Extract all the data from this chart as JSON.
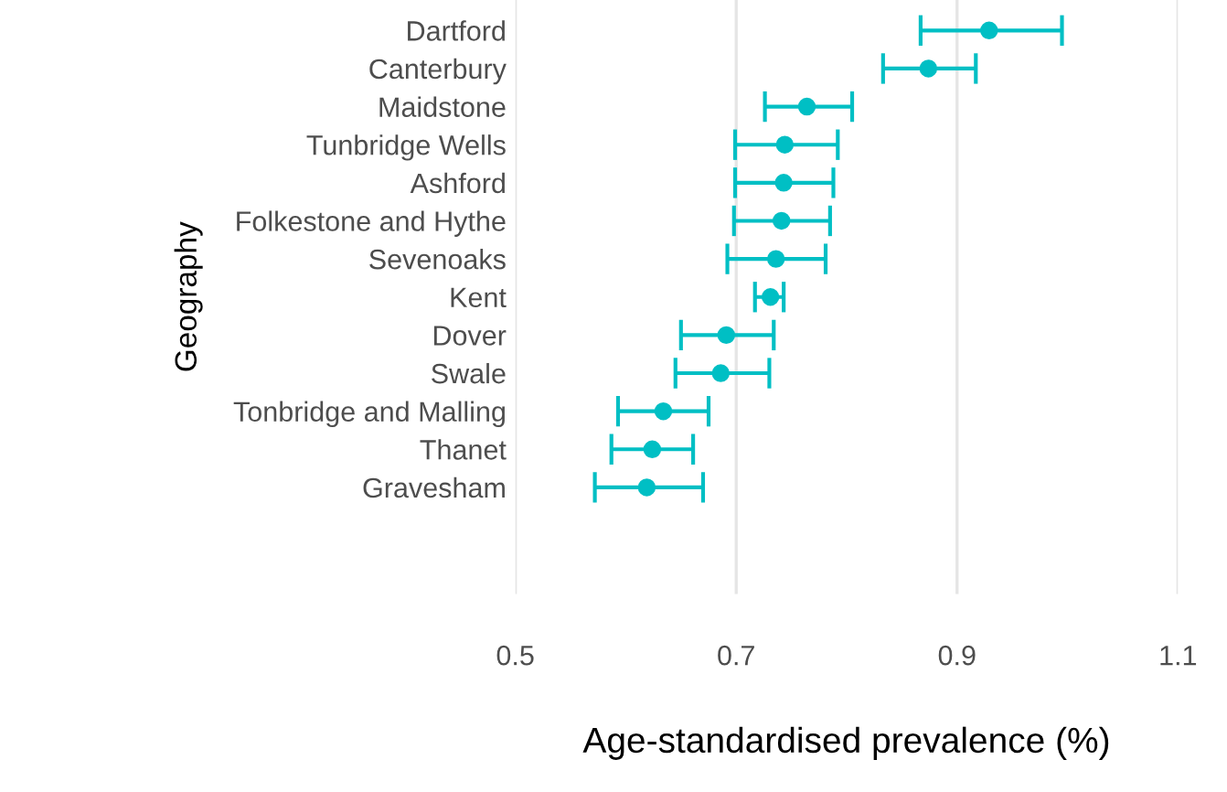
{
  "chart_data": {
    "type": "scatter",
    "orientation": "horizontal",
    "xlabel": "Age-standardised prevalence (%)",
    "ylabel": "Geography",
    "categories": [
      "Dartford",
      "Canterbury",
      "Maidstone",
      "Tunbridge Wells",
      "Ashford",
      "Folkestone and Hythe",
      "Sevenoaks",
      "Kent",
      "Dover",
      "Swale",
      "Tonbridge and Malling",
      "Thanet",
      "Gravesham"
    ],
    "values": [
      0.929,
      0.874,
      0.764,
      0.744,
      0.743,
      0.741,
      0.736,
      0.731,
      0.691,
      0.686,
      0.634,
      0.624,
      0.619
    ],
    "errors": [
      [
        0.867,
        0.995
      ],
      [
        0.833,
        0.917
      ],
      [
        0.726,
        0.805
      ],
      [
        0.699,
        0.792
      ],
      [
        0.699,
        0.788
      ],
      [
        0.698,
        0.785
      ],
      [
        0.692,
        0.781
      ],
      [
        0.717,
        0.743
      ],
      [
        0.65,
        0.734
      ],
      [
        0.645,
        0.73
      ],
      [
        0.593,
        0.675
      ],
      [
        0.587,
        0.661
      ],
      [
        0.572,
        0.67
      ]
    ],
    "color": "#00bfc4",
    "marker": "circle",
    "xlim": [
      0.5,
      1.1
    ],
    "xticks": [
      0.5,
      0.7,
      0.9,
      1.1
    ],
    "grid": "x"
  }
}
